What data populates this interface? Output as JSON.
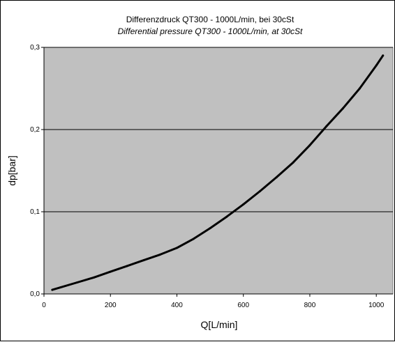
{
  "chart_data": {
    "type": "line",
    "title": "Differenzdruck QT300 - 1000L/min, bei 30cSt",
    "subtitle": "Differential pressure QT300 - 1000L/min, at 30cSt",
    "xlabel": "Q[L/min]",
    "ylabel": "dp[bar]",
    "xlim": [
      0,
      1050
    ],
    "ylim": [
      0,
      0.3
    ],
    "x_ticks": [
      0,
      200,
      400,
      600,
      800,
      1000
    ],
    "x_tick_labels": [
      "0",
      "200",
      "400",
      "600",
      "800",
      "1000"
    ],
    "y_ticks": [
      0,
      0.1,
      0.2,
      0.3
    ],
    "y_tick_labels": [
      "0,0",
      "0,1",
      "0,2",
      "0,3"
    ],
    "grid": "horizontal",
    "legend": "none",
    "colors": {
      "plot_background": "#c0c0c0",
      "line": "#000000",
      "gridline": "#000000"
    },
    "series": [
      {
        "x": [
          25,
          50,
          100,
          150,
          200,
          250,
          300,
          350,
          400,
          450,
          500,
          550,
          600,
          650,
          700,
          750,
          800,
          850,
          900,
          950,
          1000,
          1020
        ],
        "y": [
          0.005,
          0.008,
          0.014,
          0.02,
          0.027,
          0.034,
          0.041,
          0.048,
          0.056,
          0.067,
          0.08,
          0.094,
          0.109,
          0.125,
          0.142,
          0.16,
          0.181,
          0.204,
          0.226,
          0.25,
          0.278,
          0.29
        ]
      }
    ]
  }
}
